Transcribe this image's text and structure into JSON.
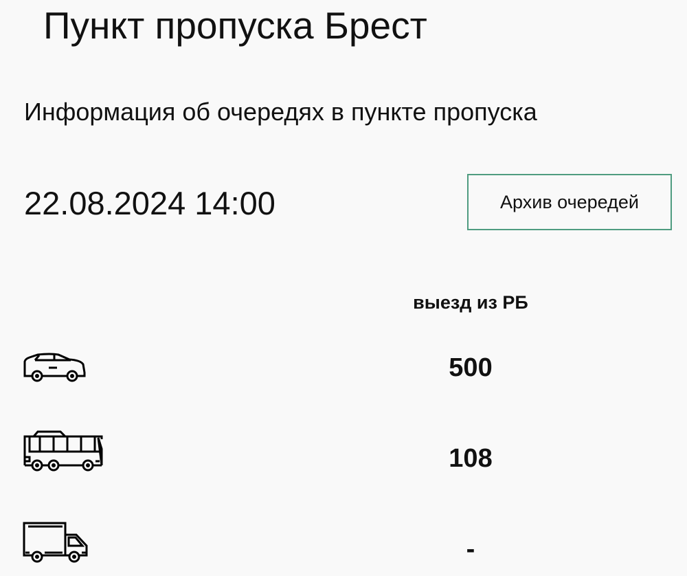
{
  "header": {
    "title": "Пункт пропуска Брест"
  },
  "subtitle": "Информация об очередях в пункте пропуска",
  "datetime": "22.08.2024 14:00",
  "archive_button": "Архив очередей",
  "colors": {
    "accent_border": "#4f9c80",
    "background": "#f9f9f9"
  },
  "table": {
    "column_header": "выезд из РБ",
    "rows": [
      {
        "icon": "car-icon",
        "value": "500"
      },
      {
        "icon": "bus-icon",
        "value": "108"
      },
      {
        "icon": "truck-icon",
        "value": "-"
      }
    ]
  }
}
